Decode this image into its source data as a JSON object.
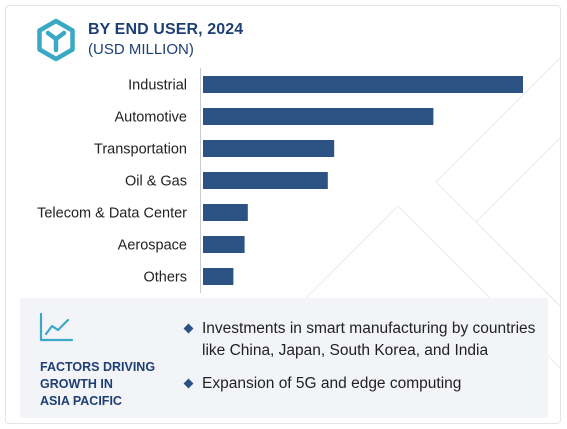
{
  "header": {
    "logo_icon": "hexagon-y-logo-icon",
    "title": "BY END USER, 2024",
    "subtitle": "(USD MILLION)"
  },
  "colors": {
    "accent": "#1d3f73",
    "bar": "#2d5284",
    "teal": "#3aa9c6",
    "panel_bg": "#f3f4f8"
  },
  "chart_data": {
    "type": "bar",
    "orientation": "horizontal",
    "title": "BY END USER, 2024",
    "subtitle": "(USD MILLION)",
    "xlabel": "",
    "ylabel": "",
    "categories": [
      "Industrial",
      "Automotive",
      "Transportation",
      "Oil & Gas",
      "Telecom & Data Center",
      "Aerospace",
      "Others"
    ],
    "values": [
      100,
      72,
      41,
      39,
      14,
      13,
      9.5
    ],
    "xlim": [
      0,
      100
    ],
    "grid": false,
    "value_axis_labels": false
  },
  "factors": {
    "icon": "growth-chart-icon",
    "title": "FACTORS DRIVING\nGROWTH IN\nASIA PACIFIC",
    "bullets": [
      "Investments in smart manufacturing by countries like China, Japan, South Korea, and India",
      "Expansion of 5G and edge computing"
    ]
  }
}
